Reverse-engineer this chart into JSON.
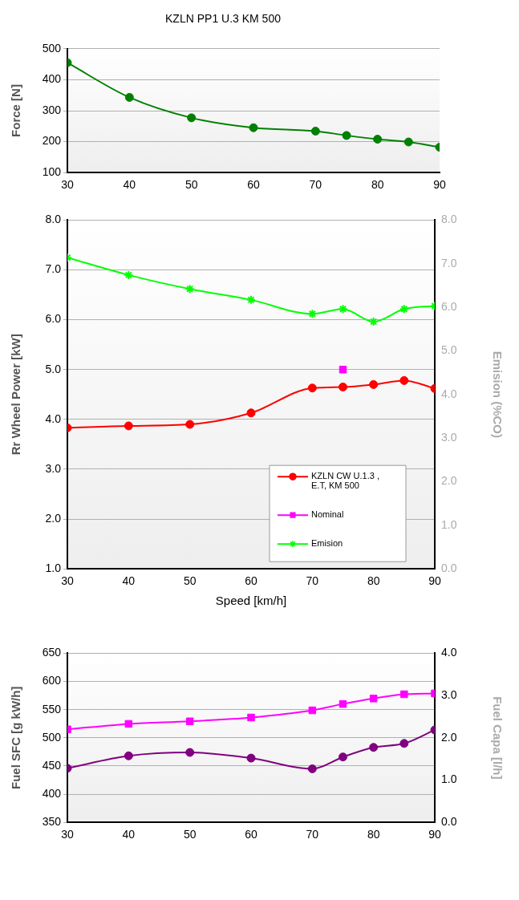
{
  "chart_data": [
    {
      "type": "line",
      "title": "KZLN PP1 U.3 KM 500",
      "ylabel": "Force [N]",
      "x": [
        30,
        40,
        50,
        60,
        70,
        75,
        80,
        85,
        90
      ],
      "xlim": [
        30,
        90
      ],
      "xticks": [
        30,
        40,
        50,
        60,
        70,
        80,
        90
      ],
      "ylim": [
        100,
        500
      ],
      "yticks": [
        100,
        200,
        300,
        400,
        500
      ],
      "grid": "y",
      "marker": "circle",
      "series": [
        {
          "color": "#008000",
          "values": [
            455,
            343,
            277,
            245,
            234,
            220,
            208,
            199,
            182
          ]
        }
      ]
    },
    {
      "type": "line",
      "xlabel": "Speed [km/h]",
      "ylabel": "Rr Wheel Power [kW]",
      "y2label": "Emision (%CO)",
      "x": [
        30,
        40,
        50,
        60,
        70,
        75,
        80,
        85,
        90
      ],
      "xlim": [
        30,
        90
      ],
      "xticks": [
        30,
        40,
        50,
        60,
        70,
        80,
        90
      ],
      "ylim": [
        1,
        8
      ],
      "yticks": [
        {
          "value": 1,
          "label": "1.0"
        },
        {
          "value": 2,
          "label": "2.0"
        },
        {
          "value": 3,
          "label": "3.0"
        },
        {
          "value": 4,
          "label": "4.0"
        },
        {
          "value": 5,
          "label": "5.0"
        },
        {
          "value": 6,
          "label": "6.0"
        },
        {
          "value": 7,
          "label": "7.0"
        },
        {
          "value": 8,
          "label": "8.0"
        }
      ],
      "y2lim": [
        0,
        8
      ],
      "y2ticks": [
        {
          "value": 0,
          "label": "0.0"
        },
        {
          "value": 1,
          "label": "1.0"
        },
        {
          "value": 2,
          "label": "2.0"
        },
        {
          "value": 3,
          "label": "3.0"
        },
        {
          "value": 4,
          "label": "4.0"
        },
        {
          "value": 5,
          "label": "5.0"
        },
        {
          "value": 6,
          "label": "6.0"
        },
        {
          "value": 7,
          "label": "7.0"
        },
        {
          "value": 8,
          "label": "8.0"
        }
      ],
      "grid": "y",
      "legend": "bottom right",
      "series": [
        {
          "name": "KZLN CW U.1.3 , E.T, KM 500",
          "color": "#ff0000",
          "marker": "circle",
          "values": [
            3.83,
            3.87,
            3.9,
            4.13,
            4.63,
            4.65,
            4.7,
            4.78,
            4.62
          ]
        },
        {
          "name": "Nominal",
          "type": "scatter",
          "color": "#ff00ff",
          "marker": "square",
          "x": [
            75
          ],
          "values": [
            5.0
          ]
        },
        {
          "name": "Emision",
          "color": "#00ff00",
          "marker": "cross",
          "axis": "y2",
          "values": [
            7.14,
            6.74,
            6.42,
            6.17,
            5.85,
            5.96,
            5.67,
            5.96,
            6.03
          ]
        }
      ]
    },
    {
      "type": "line",
      "ylabel": "Fuel SFC [g kW/h]",
      "y2label": "Fuel Capa [l/h]",
      "x": [
        30,
        40,
        50,
        60,
        70,
        75,
        80,
        85,
        90
      ],
      "xlim": [
        30,
        90
      ],
      "xticks": [
        30,
        40,
        50,
        60,
        70,
        80,
        90
      ],
      "ylim": [
        350,
        650
      ],
      "yticks": [
        350,
        400,
        450,
        500,
        550,
        600,
        650
      ],
      "y2lim": [
        0,
        4
      ],
      "y2ticks": [
        {
          "value": 0,
          "label": "0.0"
        },
        {
          "value": 1,
          "label": "1.0"
        },
        {
          "value": 2,
          "label": "2.0"
        },
        {
          "value": 3,
          "label": "3.0"
        },
        {
          "value": 4,
          "label": "4.0"
        }
      ],
      "grid": "y",
      "series": [
        {
          "color": "#800080",
          "marker": "circle",
          "values": [
            446,
            468,
            474,
            464,
            445,
            466,
            483,
            490,
            514
          ]
        },
        {
          "color": "#ff00ff",
          "marker": "square",
          "axis": "y2",
          "values": [
            2.2,
            2.33,
            2.39,
            2.48,
            2.65,
            2.8,
            2.93,
            3.03,
            3.05
          ]
        }
      ]
    }
  ]
}
